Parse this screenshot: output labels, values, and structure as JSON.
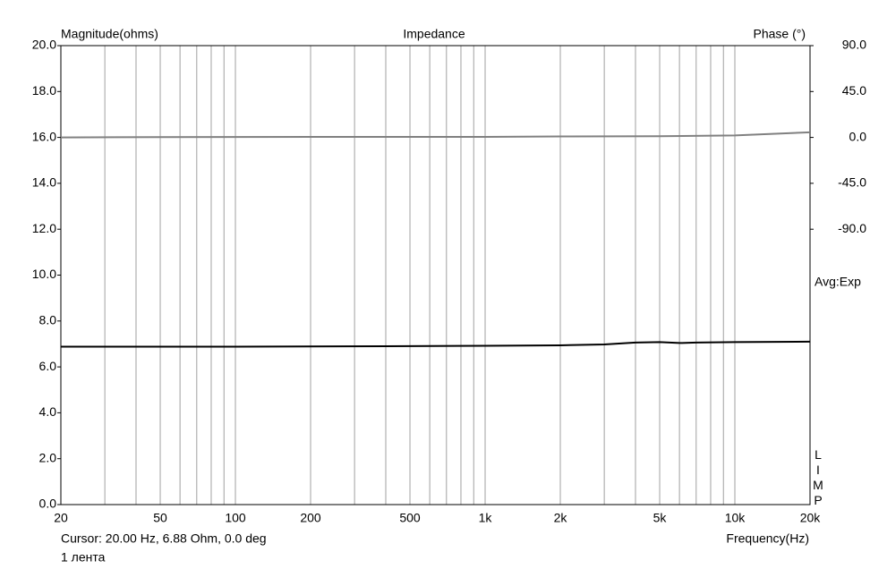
{
  "chart_data": {
    "type": "line",
    "title": "Impedance",
    "y_label": "Magnitude(ohms)",
    "y2_label": "Phase (°)",
    "x_label": "Frequency(Hz)",
    "annotation": "Avg:Exp",
    "brand": "LIMP",
    "cursor": "Cursor: 20.00 Hz, 6.88 Ohm, 0.0 deg",
    "footer": "1 лента",
    "log_x": true,
    "grid": true,
    "xlim": [
      20,
      20000
    ],
    "xticks": [
      20,
      50,
      100,
      200,
      500,
      {
        "value": 1000,
        "label": "1k"
      },
      {
        "value": 2000,
        "label": "2k"
      },
      {
        "value": 5000,
        "label": "5k"
      },
      {
        "value": 10000,
        "label": "10k"
      },
      {
        "value": 20000,
        "label": "20k"
      }
    ],
    "xminor": [
      30,
      40,
      60,
      70,
      80,
      90,
      300,
      400,
      600,
      700,
      800,
      900,
      3000,
      4000,
      6000,
      7000,
      8000,
      9000
    ],
    "ylim": [
      0,
      20
    ],
    "yticks": [
      {
        "value": 0,
        "label": "0.0"
      },
      {
        "value": 2,
        "label": "2.0"
      },
      {
        "value": 4,
        "label": "4.0"
      },
      {
        "value": 6,
        "label": "6.0"
      },
      {
        "value": 8,
        "label": "8.0"
      },
      {
        "value": 10,
        "label": "10.0"
      },
      {
        "value": 12,
        "label": "12.0"
      },
      {
        "value": 14,
        "label": "14.0"
      },
      {
        "value": 16,
        "label": "16.0"
      },
      {
        "value": 18,
        "label": "18.0"
      },
      {
        "value": 20,
        "label": "20.0"
      }
    ],
    "y2lim": [
      -360,
      90
    ],
    "y2ticks": [
      {
        "value": 90,
        "label": "90.0"
      },
      {
        "value": 45,
        "label": "45.0"
      },
      {
        "value": 0,
        "label": "0.0"
      },
      {
        "value": -45,
        "label": "-45.0"
      },
      {
        "value": -90,
        "label": "-90.0"
      }
    ],
    "series": [
      {
        "name": "Magnitude",
        "color": "#000000",
        "x": [
          20,
          100,
          400,
          1000,
          2000,
          3000,
          4000,
          5000,
          6000,
          7000,
          10000,
          20000
        ],
        "values": [
          6.88,
          6.88,
          6.9,
          6.92,
          6.94,
          6.98,
          7.06,
          7.08,
          7.04,
          7.06,
          7.08,
          7.1
        ]
      },
      {
        "name": "Phase",
        "color": "#808080",
        "axis": "y2",
        "x": [
          20,
          50,
          200,
          1000,
          2000,
          5000,
          10000,
          20000
        ],
        "values": [
          0,
          0.3,
          0.5,
          0.5,
          1,
          1.2,
          2,
          5
        ]
      }
    ]
  }
}
